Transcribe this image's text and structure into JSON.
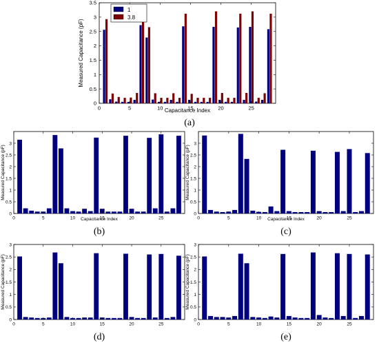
{
  "chart_data": [
    {
      "type": "bar",
      "caption": "(a)",
      "xlabel": "Capacitance Index",
      "ylabel": "Measured Capacitance (pF)",
      "xlim": [
        0,
        29
      ],
      "ylim": [
        0,
        3.5
      ],
      "xticks": [
        0,
        5,
        10,
        15,
        20,
        25
      ],
      "yticks": [
        0,
        0.5,
        1,
        1.5,
        2,
        2.5,
        3,
        3.5
      ],
      "legend": "top-left",
      "categories": [
        1,
        2,
        3,
        4,
        5,
        6,
        7,
        8,
        9,
        10,
        11,
        12,
        13,
        14,
        15,
        16,
        17,
        18,
        19,
        20,
        21,
        22,
        23,
        24,
        25,
        26,
        27,
        28
      ],
      "series": [
        {
          "name": "1",
          "color": "#00007f",
          "values": [
            2.56,
            0.14,
            0.06,
            0.05,
            0.05,
            0.12,
            2.72,
            2.29,
            0.13,
            0.05,
            0.05,
            0.12,
            0.05,
            2.68,
            0.12,
            0.05,
            0.05,
            0.05,
            2.66,
            0.12,
            0.05,
            0.05,
            2.64,
            0.12,
            2.66,
            0.06,
            0.12,
            2.58
          ]
        },
        {
          "name": "3.8",
          "color": "#7f0000",
          "values": [
            2.93,
            0.34,
            0.22,
            0.19,
            0.2,
            0.36,
            3.18,
            2.65,
            0.35,
            0.19,
            0.19,
            0.35,
            0.19,
            3.12,
            0.33,
            0.19,
            0.19,
            0.19,
            3.2,
            0.36,
            0.19,
            0.19,
            3.12,
            0.36,
            3.2,
            0.19,
            0.35,
            3.12
          ]
        }
      ]
    },
    {
      "type": "bar",
      "caption": "(b)",
      "xlabel": "Capacitance Index",
      "ylabel": "Measured Capacitance (pF)",
      "xlim": [
        0,
        29
      ],
      "ylim": [
        0,
        3.5
      ],
      "xticks": [
        0,
        5,
        10,
        15,
        20,
        25
      ],
      "yticks": [
        0,
        0.5,
        1,
        1.5,
        2,
        2.5,
        3
      ],
      "categories": [
        1,
        2,
        3,
        4,
        5,
        6,
        7,
        8,
        9,
        10,
        11,
        12,
        13,
        14,
        15,
        16,
        17,
        18,
        19,
        20,
        21,
        22,
        23,
        24,
        25,
        26,
        27,
        28
      ],
      "series": [
        {
          "color": "#00007f",
          "values": [
            3.15,
            0.22,
            0.12,
            0.08,
            0.08,
            0.22,
            3.35,
            2.78,
            0.22,
            0.1,
            0.08,
            0.2,
            0.1,
            3.24,
            0.2,
            0.08,
            0.08,
            0.08,
            3.32,
            0.2,
            0.08,
            0.08,
            3.23,
            0.22,
            3.38,
            0.08,
            0.22,
            3.32
          ]
        }
      ]
    },
    {
      "type": "bar",
      "caption": "(c)",
      "xlabel": "Capacitance Index",
      "ylabel": "Measured Capacitance (pF)",
      "xlim": [
        0,
        29
      ],
      "ylim": [
        0,
        3.5
      ],
      "xticks": [
        0,
        5,
        10,
        15,
        20,
        25
      ],
      "yticks": [
        0,
        0.5,
        1,
        1.5,
        2,
        2.5,
        3
      ],
      "categories": [
        1,
        2,
        3,
        4,
        5,
        6,
        7,
        8,
        9,
        10,
        11,
        12,
        13,
        14,
        15,
        16,
        17,
        18,
        19,
        20,
        21,
        22,
        23,
        24,
        25,
        26,
        27,
        28
      ],
      "series": [
        {
          "color": "#00007f",
          "values": [
            3.33,
            0.15,
            0.08,
            0.06,
            0.08,
            0.15,
            3.4,
            2.33,
            0.12,
            0.07,
            0.06,
            0.3,
            0.1,
            2.72,
            0.1,
            0.06,
            0.06,
            0.06,
            2.68,
            0.1,
            0.06,
            0.06,
            2.63,
            0.1,
            2.75,
            0.06,
            0.1,
            2.58
          ]
        }
      ]
    },
    {
      "type": "bar",
      "caption": "(d)",
      "xlabel": "",
      "ylabel": "Measured Capacitance (pF)",
      "xlim": [
        0,
        29
      ],
      "ylim": [
        0,
        3
      ],
      "xticks": [
        0,
        5,
        10,
        15,
        20,
        25
      ],
      "yticks": [
        0,
        0.5,
        1,
        1.5,
        2,
        2.5,
        3
      ],
      "categories": [
        1,
        2,
        3,
        4,
        5,
        6,
        7,
        8,
        9,
        10,
        11,
        12,
        13,
        14,
        15,
        16,
        17,
        18,
        19,
        20,
        21,
        22,
        23,
        24,
        25,
        26,
        27,
        28
      ],
      "series": [
        {
          "color": "#00007f",
          "values": [
            2.52,
            0.1,
            0.08,
            0.06,
            0.06,
            0.08,
            2.68,
            2.25,
            0.1,
            0.06,
            0.06,
            0.08,
            0.08,
            2.65,
            0.08,
            0.06,
            0.06,
            0.06,
            2.63,
            0.1,
            0.06,
            0.06,
            2.6,
            0.08,
            2.62,
            0.06,
            0.1,
            2.55
          ]
        }
      ]
    },
    {
      "type": "bar",
      "caption": "(e)",
      "xlabel": "",
      "ylabel": "Measured Capacitance (pF)",
      "xlim": [
        0,
        29
      ],
      "ylim": [
        0,
        3
      ],
      "xticks": [
        0,
        5,
        10,
        15,
        20,
        25
      ],
      "yticks": [
        0,
        0.5,
        1,
        1.5,
        2,
        2.5,
        3
      ],
      "categories": [
        1,
        2,
        3,
        4,
        5,
        6,
        7,
        8,
        9,
        10,
        11,
        12,
        13,
        14,
        15,
        16,
        17,
        18,
        19,
        20,
        21,
        22,
        23,
        24,
        25,
        26,
        27,
        28
      ],
      "series": [
        {
          "color": "#00007f",
          "values": [
            2.52,
            0.14,
            0.1,
            0.1,
            0.08,
            0.14,
            2.63,
            2.25,
            0.1,
            0.08,
            0.06,
            0.12,
            0.08,
            2.62,
            0.14,
            0.08,
            0.06,
            0.06,
            2.68,
            0.18,
            0.08,
            0.06,
            2.65,
            0.14,
            2.62,
            0.06,
            0.14,
            2.6
          ]
        }
      ]
    }
  ]
}
